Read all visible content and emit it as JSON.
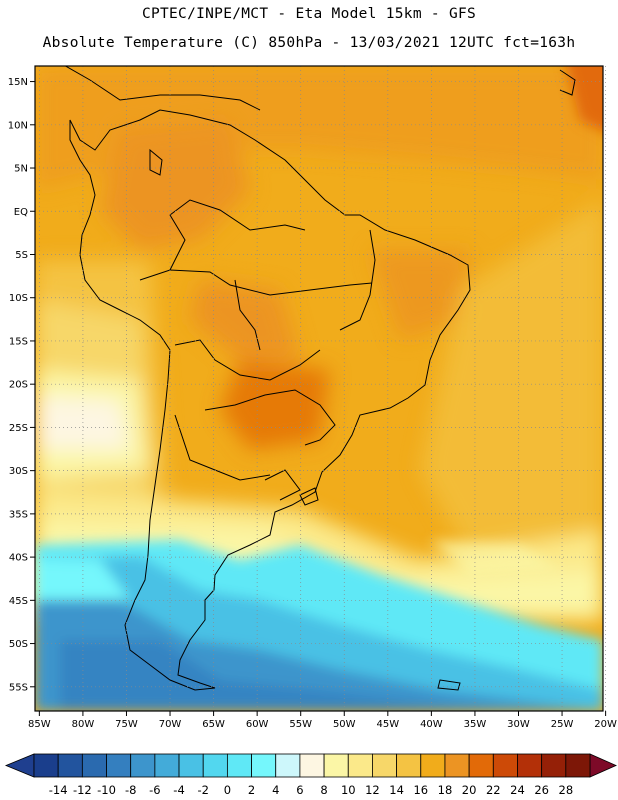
{
  "header": {
    "line1": "CPTEC/INPE/MCT -  Eta Model 15km - GFS",
    "line2": "Absolute Temperature (C) 850hPa - 13/03/2021 12UTC fct=163h"
  },
  "map": {
    "latitude_labels": [
      "15N",
      "10N",
      "5N",
      "EQ",
      "5S",
      "10S",
      "15S",
      "20S",
      "25S",
      "30S",
      "35S",
      "40S",
      "45S",
      "50S",
      "55S"
    ],
    "latitude_values": [
      15,
      10,
      5,
      0,
      -5,
      -10,
      -15,
      -20,
      -25,
      -30,
      -35,
      -40,
      -45,
      -50,
      -55
    ],
    "longitude_labels": [
      "85W",
      "80W",
      "75W",
      "70W",
      "65W",
      "60W",
      "55W",
      "50W",
      "45W",
      "40W",
      "35W",
      "30W",
      "25W",
      "20W"
    ],
    "longitude_values": [
      -85,
      -80,
      -75,
      -70,
      -65,
      -60,
      -55,
      -50,
      -45,
      -40,
      -35,
      -30,
      -25,
      -20
    ],
    "extent": {
      "lon_min": -85.5,
      "lon_max": -20.3,
      "lat_min": -57.8,
      "lat_max": 16.8
    }
  },
  "colorbar": {
    "tick_labels": [
      "-14",
      "-12",
      "-10",
      "-8",
      "-6",
      "-4",
      "-2",
      "0",
      "2",
      "4",
      "6",
      "8",
      "10",
      "12",
      "14",
      "16",
      "18",
      "20",
      "22",
      "24",
      "26",
      "28"
    ],
    "colors": [
      "#1a3e8c",
      "#22549e",
      "#2a6aaf",
      "#347fbf",
      "#3d95cc",
      "#43abd9",
      "#49c1e5",
      "#52d7ef",
      "#5fe8f6",
      "#75f7fc",
      "#cdf7fb",
      "#fdf6e2",
      "#fbf6a6",
      "#fbe98a",
      "#f7d769",
      "#f4c343",
      "#f1ac1b",
      "#ec9423",
      "#e26a08",
      "#cd4a07",
      "#b33008",
      "#952007",
      "#7d1707"
    ],
    "end_left_color": "#1f3f8f",
    "end_right_color": "#7d0a28"
  }
}
